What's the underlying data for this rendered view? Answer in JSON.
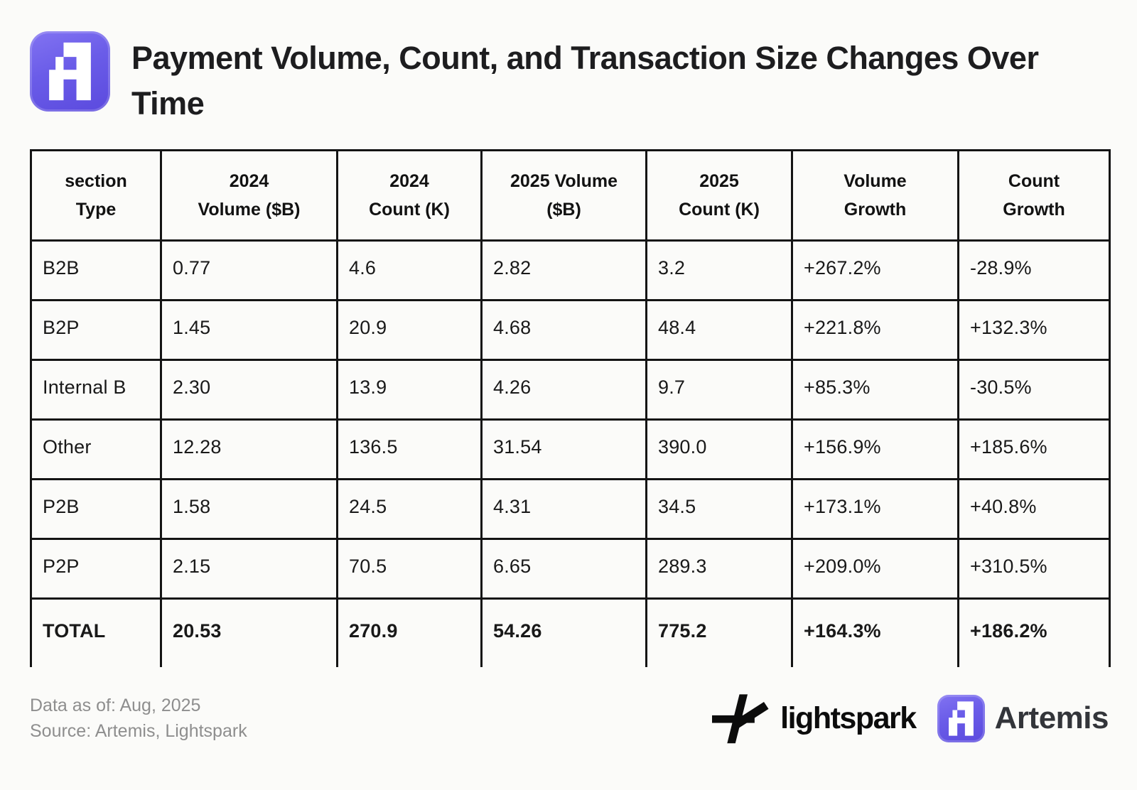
{
  "header": {
    "title": "Payment Volume, Count, and Transaction Size Changes Over Time"
  },
  "table": {
    "columns": [
      [
        "section",
        "Type"
      ],
      [
        "2024",
        "Volume ($B)"
      ],
      [
        "2024",
        "Count (K)"
      ],
      [
        "2025 Volume",
        "($B)"
      ],
      [
        "2025",
        "Count (K)"
      ],
      [
        "Volume",
        "Growth"
      ],
      [
        "Count",
        "Growth"
      ]
    ],
    "rows": [
      [
        "B2B",
        "0.77",
        "4.6",
        "2.82",
        "3.2",
        "+267.2%",
        "-28.9%"
      ],
      [
        "B2P",
        "1.45",
        "20.9",
        "4.68",
        "48.4",
        "+221.8%",
        "+132.3%"
      ],
      [
        "Internal B",
        "2.30",
        "13.9",
        "4.26",
        "9.7",
        "+85.3%",
        "-30.5%"
      ],
      [
        "Other",
        "12.28",
        "136.5",
        "31.54",
        "390.0",
        "+156.9%",
        "+185.6%"
      ],
      [
        "P2B",
        "1.58",
        "24.5",
        "4.31",
        "34.5",
        "+173.1%",
        "+40.8%"
      ],
      [
        "P2P",
        "2.15",
        "70.5",
        "6.65",
        "289.3",
        "+209.0%",
        "+310.5%"
      ]
    ],
    "total": [
      "TOTAL",
      "20.53",
      "270.9",
      "54.26",
      "775.2",
      "+164.3%",
      "+186.2%"
    ]
  },
  "footer": {
    "data_as_of": "Data as of: Aug, 2025",
    "source": "Source: Artemis, Lightspark",
    "lightspark_label": "lightspark",
    "artemis_label": "Artemis"
  },
  "icons": [
    "artemis-logo-icon",
    "lightspark-icon"
  ],
  "colors": {
    "accent_purple": "#6a5ce8",
    "table_border": "#141414",
    "muted_text": "#8e8e8e",
    "background": "#fbfbf9",
    "title_text": "#1d1d1f"
  },
  "chart_data": {
    "type": "table",
    "title": "Payment Volume, Count, and Transaction Size Changes Over Time",
    "columns": [
      "section Type",
      "2024 Volume ($B)",
      "2024 Count (K)",
      "2025 Volume ($B)",
      "2025 Count (K)",
      "Volume Growth",
      "Count Growth"
    ],
    "rows": [
      {
        "section_type": "B2B",
        "volume_2024_b": 0.77,
        "count_2024_k": 4.6,
        "volume_2025_b": 2.82,
        "count_2025_k": 3.2,
        "volume_growth_pct": 267.2,
        "count_growth_pct": -28.9
      },
      {
        "section_type": "B2P",
        "volume_2024_b": 1.45,
        "count_2024_k": 20.9,
        "volume_2025_b": 4.68,
        "count_2025_k": 48.4,
        "volume_growth_pct": 221.8,
        "count_growth_pct": 132.3
      },
      {
        "section_type": "Internal B",
        "volume_2024_b": 2.3,
        "count_2024_k": 13.9,
        "volume_2025_b": 4.26,
        "count_2025_k": 9.7,
        "volume_growth_pct": 85.3,
        "count_growth_pct": -30.5
      },
      {
        "section_type": "Other",
        "volume_2024_b": 12.28,
        "count_2024_k": 136.5,
        "volume_2025_b": 31.54,
        "count_2025_k": 390.0,
        "volume_growth_pct": 156.9,
        "count_growth_pct": 185.6
      },
      {
        "section_type": "P2B",
        "volume_2024_b": 1.58,
        "count_2024_k": 24.5,
        "volume_2025_b": 4.31,
        "count_2025_k": 34.5,
        "volume_growth_pct": 173.1,
        "count_growth_pct": 40.8
      },
      {
        "section_type": "P2P",
        "volume_2024_b": 2.15,
        "count_2024_k": 70.5,
        "volume_2025_b": 6.65,
        "count_2025_k": 289.3,
        "volume_growth_pct": 209.0,
        "count_growth_pct": 310.5
      }
    ],
    "total": {
      "section_type": "TOTAL",
      "volume_2024_b": 20.53,
      "count_2024_k": 270.9,
      "volume_2025_b": 54.26,
      "count_2025_k": 775.2,
      "volume_growth_pct": 164.3,
      "count_growth_pct": 186.2
    },
    "data_as_of": "Aug, 2025",
    "source": "Artemis, Lightspark"
  }
}
